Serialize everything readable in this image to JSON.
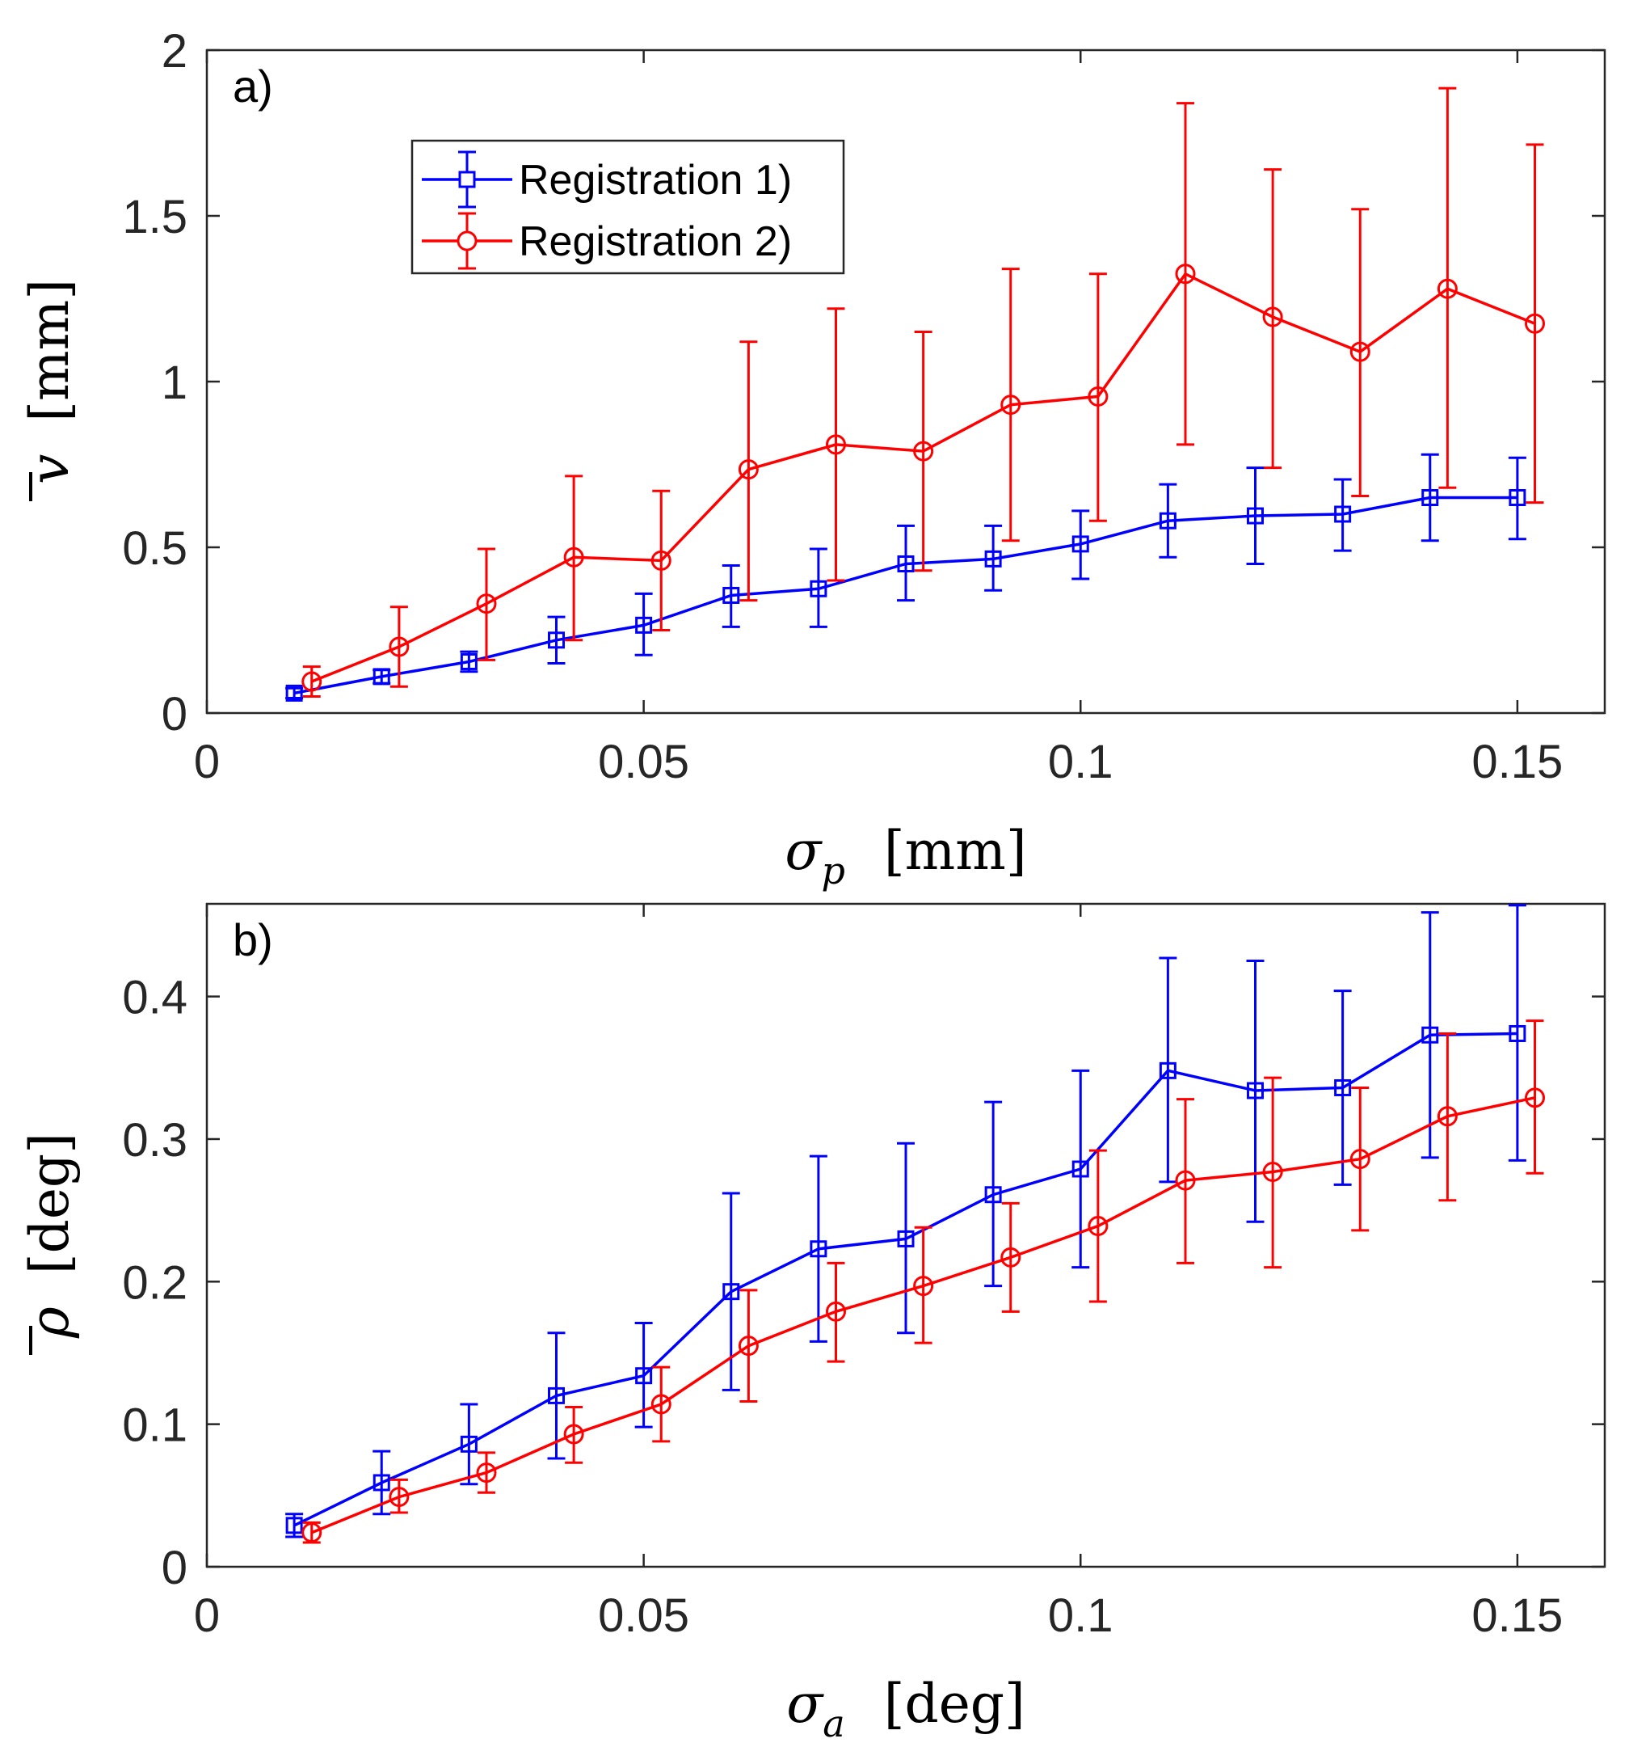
{
  "chart_data": [
    {
      "type": "line",
      "panel_label": "a)",
      "xlabel": {
        "symbol": "σ",
        "subscript": "p",
        "unit": "[mm]"
      },
      "ylabel": {
        "symbol": "v",
        "unit": "[mm]"
      },
      "xlim": [
        0,
        0.16
      ],
      "ylim": [
        0,
        2
      ],
      "xticks": [
        0,
        0.05,
        0.1,
        0.15
      ],
      "xtick_labels": [
        "0",
        "0.05",
        "0.1",
        "0.15"
      ],
      "yticks": [
        0,
        0.5,
        1,
        1.5,
        2
      ],
      "ytick_labels": [
        "0",
        "0.5",
        "1",
        "1.5",
        "2"
      ],
      "legend": {
        "placement": "top-left"
      },
      "series": [
        {
          "name": "Registration 1)",
          "color": "#0000ff",
          "marker": "square",
          "x": [
            0.01,
            0.02,
            0.03,
            0.04,
            0.05,
            0.06,
            0.07,
            0.08,
            0.09,
            0.1,
            0.11,
            0.12,
            0.13,
            0.14,
            0.15
          ],
          "y": [
            0.06,
            0.11,
            0.155,
            0.22,
            0.265,
            0.355,
            0.375,
            0.45,
            0.465,
            0.51,
            0.58,
            0.595,
            0.6,
            0.65,
            0.65
          ],
          "err_low": [
            0.045,
            0.09,
            0.125,
            0.15,
            0.175,
            0.26,
            0.26,
            0.34,
            0.37,
            0.405,
            0.47,
            0.45,
            0.49,
            0.52,
            0.525
          ],
          "err_high": [
            0.075,
            0.13,
            0.185,
            0.29,
            0.36,
            0.445,
            0.495,
            0.565,
            0.565,
            0.61,
            0.69,
            0.74,
            0.705,
            0.78,
            0.77
          ]
        },
        {
          "name": "Registration 2)",
          "color": "#ff0000",
          "marker": "circle",
          "x": [
            0.012,
            0.022,
            0.032,
            0.042,
            0.052,
            0.062,
            0.072,
            0.082,
            0.092,
            0.102,
            0.112,
            0.122,
            0.132,
            0.142,
            0.152
          ],
          "y": [
            0.095,
            0.2,
            0.33,
            0.47,
            0.46,
            0.735,
            0.81,
            0.79,
            0.93,
            0.955,
            1.325,
            1.195,
            1.09,
            1.28,
            1.175
          ],
          "err_low": [
            0.05,
            0.08,
            0.16,
            0.22,
            0.25,
            0.34,
            0.4,
            0.43,
            0.52,
            0.58,
            0.81,
            0.74,
            0.655,
            0.68,
            0.635
          ],
          "err_high": [
            0.14,
            0.32,
            0.495,
            0.715,
            0.67,
            1.12,
            1.22,
            1.15,
            1.34,
            1.325,
            1.84,
            1.64,
            1.52,
            1.885,
            1.715
          ]
        }
      ]
    },
    {
      "type": "line",
      "panel_label": "b)",
      "xlabel": {
        "symbol": "σ",
        "subscript": "a",
        "unit": "[deg]"
      },
      "ylabel": {
        "symbol": "ρ",
        "unit": "[deg]"
      },
      "xlim": [
        0,
        0.16
      ],
      "ylim": [
        0,
        0.465
      ],
      "xticks": [
        0,
        0.05,
        0.1,
        0.15
      ],
      "xtick_labels": [
        "0",
        "0.05",
        "0.1",
        "0.15"
      ],
      "yticks": [
        0,
        0.1,
        0.2,
        0.3,
        0.4
      ],
      "ytick_labels": [
        "0",
        "0.1",
        "0.2",
        "0.3",
        "0.4"
      ],
      "series": [
        {
          "name": "Registration 1)",
          "color": "#0000ff",
          "marker": "square",
          "x": [
            0.01,
            0.02,
            0.03,
            0.04,
            0.05,
            0.06,
            0.07,
            0.08,
            0.09,
            0.1,
            0.11,
            0.12,
            0.13,
            0.14,
            0.15
          ],
          "y": [
            0.029,
            0.059,
            0.086,
            0.12,
            0.134,
            0.193,
            0.223,
            0.23,
            0.261,
            0.279,
            0.348,
            0.334,
            0.336,
            0.373,
            0.374
          ],
          "err_low": [
            0.021,
            0.037,
            0.058,
            0.076,
            0.098,
            0.124,
            0.158,
            0.164,
            0.197,
            0.21,
            0.27,
            0.242,
            0.268,
            0.287,
            0.285
          ],
          "err_high": [
            0.037,
            0.081,
            0.114,
            0.164,
            0.171,
            0.262,
            0.288,
            0.297,
            0.326,
            0.348,
            0.427,
            0.425,
            0.404,
            0.459,
            0.464
          ]
        },
        {
          "name": "Registration 2)",
          "color": "#ff0000",
          "marker": "circle",
          "x": [
            0.012,
            0.022,
            0.032,
            0.042,
            0.052,
            0.062,
            0.072,
            0.082,
            0.092,
            0.102,
            0.112,
            0.122,
            0.132,
            0.142,
            0.152
          ],
          "y": [
            0.024,
            0.049,
            0.066,
            0.093,
            0.114,
            0.155,
            0.179,
            0.197,
            0.217,
            0.239,
            0.271,
            0.277,
            0.286,
            0.316,
            0.329
          ],
          "err_low": [
            0.017,
            0.038,
            0.052,
            0.073,
            0.088,
            0.116,
            0.144,
            0.157,
            0.179,
            0.186,
            0.213,
            0.21,
            0.236,
            0.257,
            0.276
          ],
          "err_high": [
            0.031,
            0.061,
            0.08,
            0.112,
            0.14,
            0.194,
            0.213,
            0.238,
            0.255,
            0.292,
            0.328,
            0.343,
            0.336,
            0.374,
            0.383
          ]
        }
      ]
    }
  ]
}
